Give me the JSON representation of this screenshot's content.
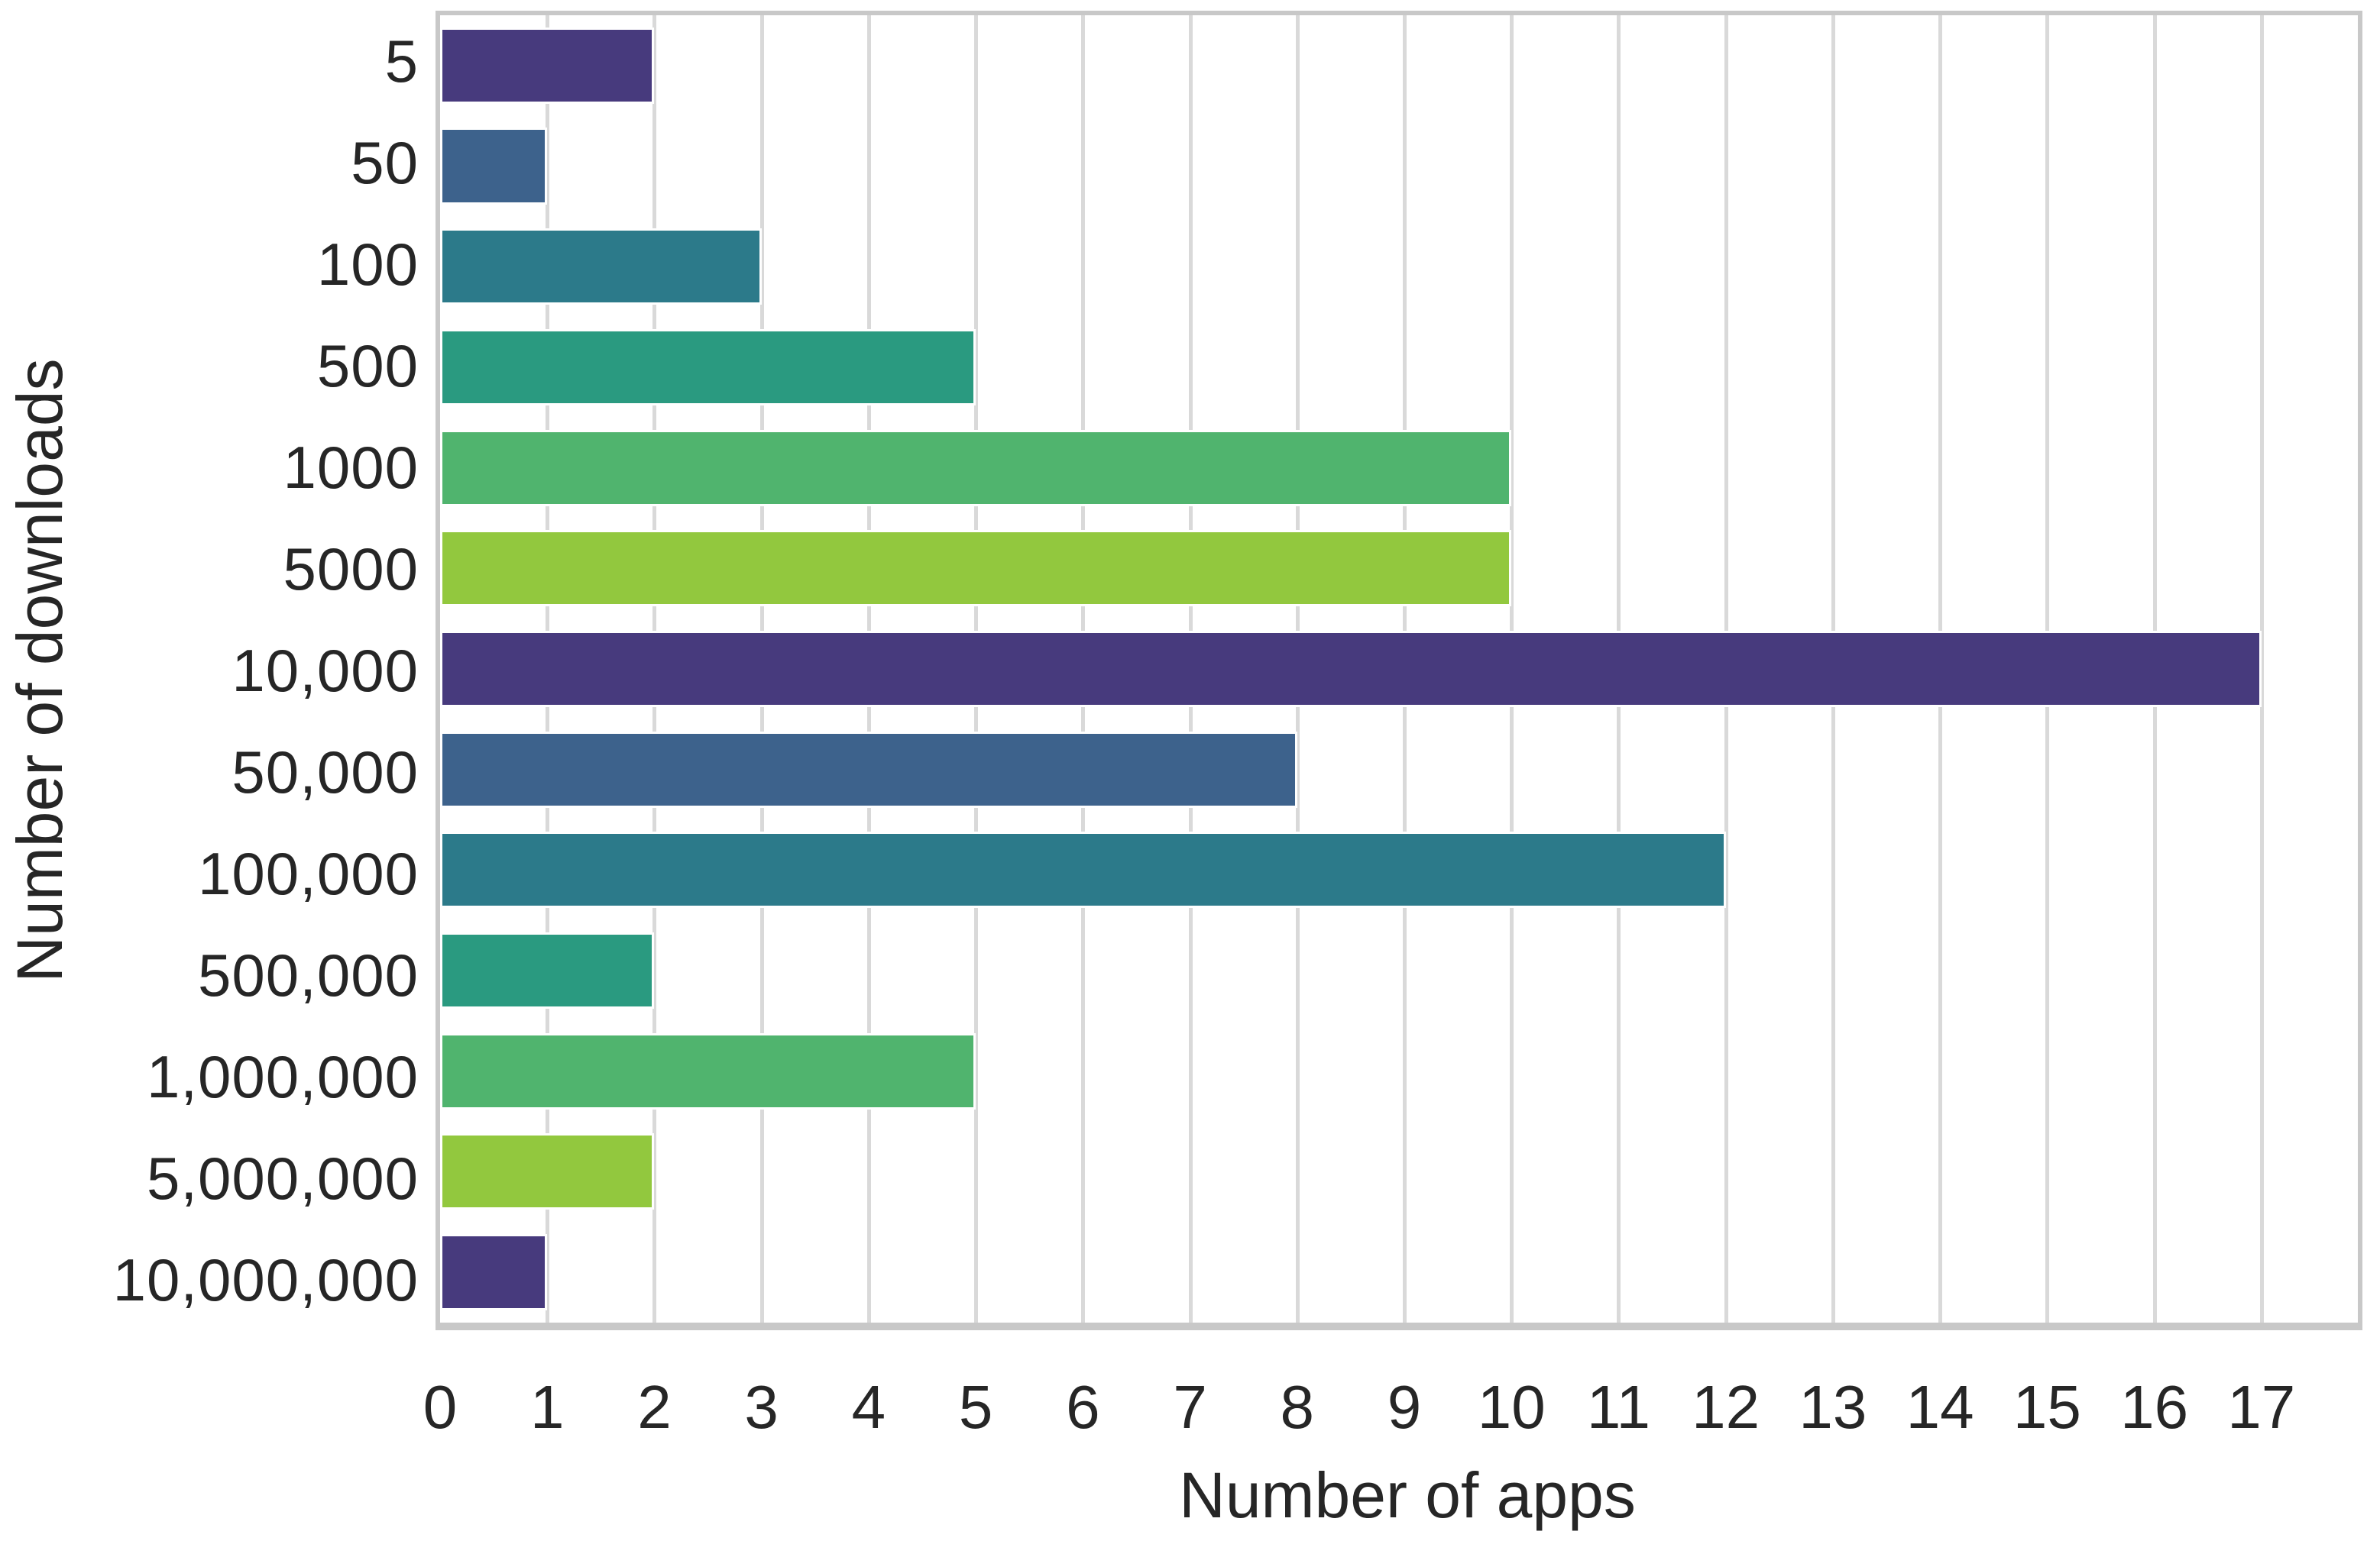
{
  "chart_data": {
    "type": "bar",
    "orientation": "horizontal",
    "title": "",
    "xlabel": "Number of apps",
    "ylabel": "Number of downloads",
    "categories": [
      "5",
      "50",
      "100",
      "500",
      "1000",
      "5000",
      "10,000",
      "50,000",
      "100,000",
      "500,000",
      "1,000,000",
      "5,000,000",
      "10,000,000"
    ],
    "values": [
      2,
      1,
      3,
      5,
      10,
      10,
      17,
      8,
      12,
      2,
      5,
      2,
      1
    ],
    "bar_colors": [
      "#473a7d",
      "#3d628c",
      "#2c7a8a",
      "#2a9a80",
      "#50b46e",
      "#92c83e",
      "#473a7d",
      "#3d628c",
      "#2c7a8a",
      "#2a9a80",
      "#50b46e",
      "#92c83e",
      "#473a7d"
    ],
    "x_tick_labels": [
      "0",
      "1",
      "2",
      "3",
      "4",
      "5",
      "6",
      "7",
      "8",
      "9",
      "10",
      "11",
      "12",
      "13",
      "14",
      "15",
      "16",
      "17"
    ],
    "x_ticks": [
      0,
      1,
      2,
      3,
      4,
      5,
      6,
      7,
      8,
      9,
      10,
      11,
      12,
      13,
      14,
      15,
      16,
      17
    ],
    "xlim": [
      0,
      17.9
    ],
    "grid": true,
    "legend": false,
    "gridline_color": "#d9d9d9",
    "spine_color": "#c8c8c8",
    "bar_edge_color": "#ffffff",
    "text_color": "#262626",
    "background_color": "#ffffff"
  }
}
